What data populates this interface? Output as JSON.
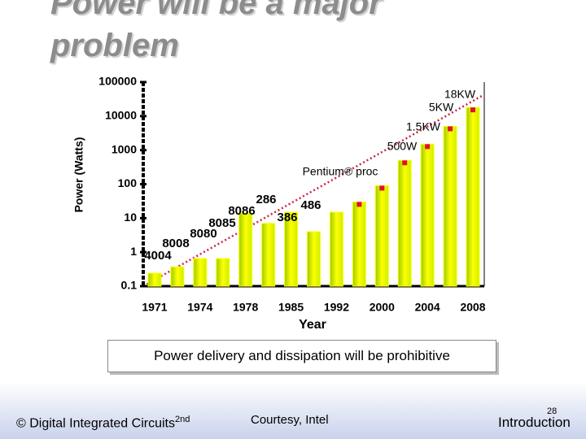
{
  "title": "Power will be a major problem",
  "chart_data": {
    "type": "bar",
    "categories": [
      "1971",
      null,
      "1974",
      null,
      "1978",
      null,
      "1985",
      null,
      "1992",
      null,
      "2000",
      null,
      "2004",
      null,
      "2008"
    ],
    "values": [
      0.24,
      0.37,
      0.65,
      0.65,
      14,
      7,
      15,
      4,
      15,
      30,
      90,
      500,
      1500,
      5000,
      18000
    ],
    "color": "#ffff00",
    "ylim": [
      0.1,
      100000
    ],
    "yticks": [
      0.1,
      1,
      10,
      100,
      1000,
      10000,
      100000
    ],
    "log_scale": true,
    "y_label": "Power (Watts)",
    "x_label": "Year",
    "annotations": [
      "4004",
      "8008",
      "8080",
      "8085",
      "8086",
      "286",
      "386",
      "486",
      "Pentium® proc",
      "500W",
      "1.5KW",
      "5KW",
      "18KW"
    ]
  },
  "callout": "Power delivery and dissipation will be prohibitive",
  "footer": {
    "left": "© Digital Integrated Circuits",
    "left_sup": "2nd",
    "center": "Courtesy, Intel",
    "page": "28",
    "right": "Introduction"
  }
}
